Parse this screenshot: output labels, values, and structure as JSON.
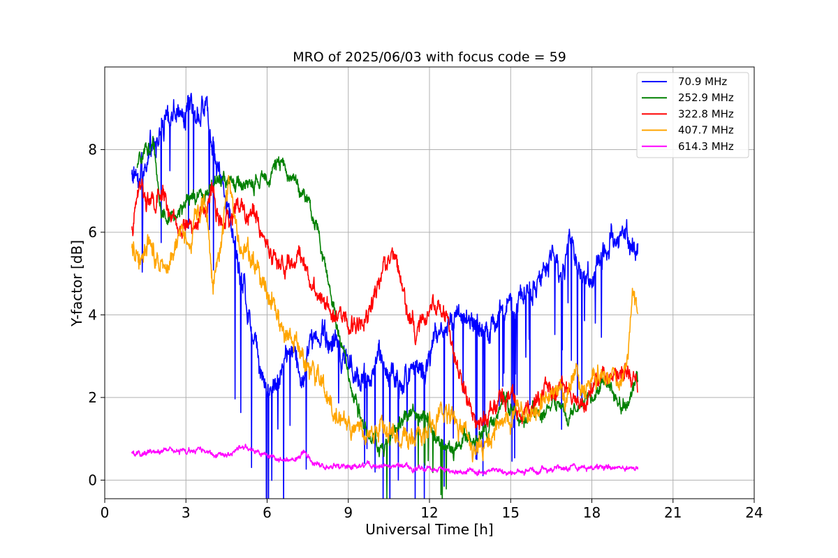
{
  "chart_data": {
    "type": "line",
    "title": "MRO of 2025/06/03 with focus code = 59",
    "xlabel": "Universal Time [h]",
    "ylabel": "Y-factor [dB]",
    "xlim": [
      0,
      24
    ],
    "ylim": [
      -0.45,
      10.0
    ],
    "x_ticks": [
      0,
      3,
      6,
      9,
      12,
      15,
      18,
      21,
      24
    ],
    "y_ticks": [
      0,
      2,
      4,
      6,
      8
    ],
    "grid": true,
    "legend_position": "top-right",
    "series": [
      {
        "name": " 70.9 MHz",
        "color": "#0000ff",
        "noise": 0.35,
        "points": [
          [
            1.0,
            7.4
          ],
          [
            1.3,
            7.6
          ],
          [
            1.6,
            7.8
          ],
          [
            1.9,
            8.2
          ],
          [
            2.2,
            8.6
          ],
          [
            2.5,
            9.0
          ],
          [
            2.8,
            9.0
          ],
          [
            3.1,
            8.9
          ],
          [
            3.4,
            9.0
          ],
          [
            3.7,
            9.1
          ],
          [
            4.0,
            8.0
          ],
          [
            4.3,
            7.1
          ],
          [
            4.6,
            6.6
          ],
          [
            4.9,
            5.5
          ],
          [
            5.2,
            4.3
          ],
          [
            5.5,
            3.6
          ],
          [
            5.8,
            2.7
          ],
          [
            6.1,
            2.2
          ],
          [
            6.4,
            2.4
          ],
          [
            6.7,
            3.1
          ],
          [
            7.0,
            3.0
          ],
          [
            7.3,
            2.6
          ],
          [
            7.6,
            3.4
          ],
          [
            7.9,
            3.6
          ],
          [
            8.2,
            3.3
          ],
          [
            8.5,
            3.2
          ],
          [
            8.8,
            2.9
          ],
          [
            9.1,
            2.7
          ],
          [
            9.4,
            2.5
          ],
          [
            9.7,
            2.6
          ],
          [
            10.0,
            2.8
          ],
          [
            10.3,
            2.7
          ],
          [
            10.6,
            2.6
          ],
          [
            10.9,
            2.4
          ],
          [
            11.2,
            2.6
          ],
          [
            11.5,
            2.8
          ],
          [
            11.8,
            2.6
          ],
          [
            12.1,
            3.1
          ],
          [
            12.4,
            3.5
          ],
          [
            12.7,
            3.9
          ],
          [
            13.0,
            4.2
          ],
          [
            13.3,
            4.1
          ],
          [
            13.6,
            3.8
          ],
          [
            13.9,
            3.5
          ],
          [
            14.2,
            3.6
          ],
          [
            14.5,
            3.9
          ],
          [
            14.8,
            4.0
          ],
          [
            15.1,
            4.0
          ],
          [
            15.4,
            4.4
          ],
          [
            15.7,
            4.7
          ],
          [
            16.0,
            5.0
          ],
          [
            16.3,
            5.0
          ],
          [
            16.6,
            5.3
          ],
          [
            16.9,
            5.0
          ],
          [
            17.2,
            5.6
          ],
          [
            17.5,
            5.2
          ],
          [
            17.8,
            5.0
          ],
          [
            18.1,
            4.9
          ],
          [
            18.4,
            5.5
          ],
          [
            18.7,
            5.7
          ],
          [
            19.0,
            5.7
          ],
          [
            19.3,
            5.8
          ],
          [
            19.7,
            5.4
          ]
        ]
      },
      {
        "name": "252.9 MHz",
        "color": "#008000",
        "noise": 0.2,
        "points": [
          [
            1.2,
            7.5
          ],
          [
            1.5,
            8.0
          ],
          [
            1.8,
            8.1
          ],
          [
            2.1,
            6.5
          ],
          [
            2.4,
            6.3
          ],
          [
            2.7,
            6.5
          ],
          [
            3.0,
            6.6
          ],
          [
            3.3,
            6.8
          ],
          [
            3.6,
            6.9
          ],
          [
            3.9,
            7.1
          ],
          [
            4.2,
            7.2
          ],
          [
            4.5,
            7.3
          ],
          [
            4.8,
            7.1
          ],
          [
            5.1,
            7.2
          ],
          [
            5.4,
            7.1
          ],
          [
            5.7,
            7.2
          ],
          [
            6.0,
            7.4
          ],
          [
            6.3,
            7.7
          ],
          [
            6.6,
            7.5
          ],
          [
            6.9,
            7.4
          ],
          [
            7.2,
            7.1
          ],
          [
            7.5,
            6.7
          ],
          [
            7.8,
            6.1
          ],
          [
            8.1,
            5.4
          ],
          [
            8.4,
            4.4
          ],
          [
            8.7,
            3.4
          ],
          [
            9.0,
            2.6
          ],
          [
            9.3,
            1.9
          ],
          [
            9.6,
            1.4
          ],
          [
            9.9,
            1.0
          ],
          [
            10.2,
            0.7
          ],
          [
            10.5,
            1.0
          ],
          [
            10.8,
            1.4
          ],
          [
            11.1,
            1.5
          ],
          [
            11.4,
            1.6
          ],
          [
            11.7,
            1.6
          ],
          [
            12.0,
            1.4
          ],
          [
            12.3,
            1.0
          ],
          [
            12.6,
            0.8
          ],
          [
            12.9,
            0.7
          ],
          [
            13.2,
            1.1
          ],
          [
            13.5,
            1.0
          ],
          [
            13.8,
            1.0
          ],
          [
            14.1,
            1.2
          ],
          [
            14.4,
            1.5
          ],
          [
            14.7,
            1.9
          ],
          [
            15.0,
            1.7
          ],
          [
            15.3,
            1.5
          ],
          [
            15.6,
            1.4
          ],
          [
            15.9,
            1.6
          ],
          [
            16.2,
            1.6
          ],
          [
            16.5,
            1.8
          ],
          [
            16.8,
            1.9
          ],
          [
            17.1,
            1.6
          ],
          [
            17.4,
            1.7
          ],
          [
            17.7,
            1.8
          ],
          [
            18.0,
            2.0
          ],
          [
            18.3,
            2.2
          ],
          [
            18.6,
            2.3
          ],
          [
            18.9,
            2.0
          ],
          [
            19.2,
            1.8
          ],
          [
            19.5,
            2.1
          ],
          [
            19.7,
            2.3
          ]
        ]
      },
      {
        "name": "322.8 MHz",
        "color": "#ff0000",
        "noise": 0.25,
        "points": [
          [
            1.0,
            6.0
          ],
          [
            1.3,
            7.2
          ],
          [
            1.6,
            6.8
          ],
          [
            1.9,
            6.6
          ],
          [
            2.2,
            7.0
          ],
          [
            2.5,
            6.2
          ],
          [
            2.8,
            5.9
          ],
          [
            3.1,
            6.3
          ],
          [
            3.4,
            6.2
          ],
          [
            3.7,
            6.5
          ],
          [
            4.0,
            6.9
          ],
          [
            4.3,
            6.1
          ],
          [
            4.6,
            6.2
          ],
          [
            4.9,
            6.7
          ],
          [
            5.2,
            6.4
          ],
          [
            5.5,
            6.5
          ],
          [
            5.8,
            6.1
          ],
          [
            6.1,
            5.5
          ],
          [
            6.4,
            5.3
          ],
          [
            6.7,
            5.1
          ],
          [
            7.0,
            5.3
          ],
          [
            7.3,
            5.5
          ],
          [
            7.6,
            4.8
          ],
          [
            7.9,
            4.6
          ],
          [
            8.2,
            4.4
          ],
          [
            8.5,
            4.1
          ],
          [
            8.8,
            3.9
          ],
          [
            9.1,
            3.7
          ],
          [
            9.4,
            3.7
          ],
          [
            9.7,
            4.1
          ],
          [
            10.0,
            4.6
          ],
          [
            10.3,
            5.2
          ],
          [
            10.6,
            5.5
          ],
          [
            10.9,
            5.1
          ],
          [
            11.2,
            4.2
          ],
          [
            11.5,
            3.5
          ],
          [
            11.8,
            3.9
          ],
          [
            12.1,
            4.2
          ],
          [
            12.4,
            4.2
          ],
          [
            12.7,
            3.9
          ],
          [
            13.0,
            2.8
          ],
          [
            13.3,
            2.1
          ],
          [
            13.6,
            1.6
          ],
          [
            13.9,
            1.3
          ],
          [
            14.2,
            1.5
          ],
          [
            14.5,
            1.9
          ],
          [
            14.8,
            2.1
          ],
          [
            15.1,
            2.0
          ],
          [
            15.4,
            1.8
          ],
          [
            15.7,
            1.7
          ],
          [
            16.0,
            2.0
          ],
          [
            16.3,
            2.3
          ],
          [
            16.6,
            2.2
          ],
          [
            16.9,
            2.2
          ],
          [
            17.2,
            2.0
          ],
          [
            17.5,
            1.9
          ],
          [
            17.8,
            2.1
          ],
          [
            18.1,
            2.2
          ],
          [
            18.4,
            2.5
          ],
          [
            18.7,
            2.5
          ],
          [
            19.0,
            2.6
          ],
          [
            19.3,
            2.7
          ],
          [
            19.7,
            2.2
          ]
        ]
      },
      {
        "name": "407.7 MHz",
        "color": "#ffa500",
        "noise": 0.28,
        "points": [
          [
            1.0,
            5.6
          ],
          [
            1.3,
            5.5
          ],
          [
            1.6,
            5.8
          ],
          [
            1.9,
            5.5
          ],
          [
            2.2,
            5.3
          ],
          [
            2.5,
            5.6
          ],
          [
            2.8,
            5.9
          ],
          [
            3.1,
            5.7
          ],
          [
            3.4,
            6.5
          ],
          [
            3.7,
            6.8
          ],
          [
            4.0,
            4.8
          ],
          [
            4.3,
            5.8
          ],
          [
            4.6,
            7.4
          ],
          [
            4.9,
            5.8
          ],
          [
            5.2,
            5.6
          ],
          [
            5.5,
            5.4
          ],
          [
            5.8,
            5.0
          ],
          [
            6.1,
            4.5
          ],
          [
            6.4,
            4.0
          ],
          [
            6.7,
            3.5
          ],
          [
            7.0,
            3.2
          ],
          [
            7.3,
            3.0
          ],
          [
            7.6,
            2.7
          ],
          [
            7.9,
            2.4
          ],
          [
            8.2,
            2.0
          ],
          [
            8.5,
            1.6
          ],
          [
            8.8,
            1.5
          ],
          [
            9.1,
            1.3
          ],
          [
            9.4,
            1.2
          ],
          [
            9.7,
            1.0
          ],
          [
            10.0,
            1.2
          ],
          [
            10.3,
            1.4
          ],
          [
            10.6,
            1.1
          ],
          [
            10.9,
            1.0
          ],
          [
            11.2,
            1.1
          ],
          [
            11.5,
            1.0
          ],
          [
            11.8,
            0.9
          ],
          [
            12.1,
            1.4
          ],
          [
            12.4,
            1.7
          ],
          [
            12.7,
            1.6
          ],
          [
            13.0,
            1.3
          ],
          [
            13.3,
            1.0
          ],
          [
            13.6,
            0.7
          ],
          [
            13.9,
            0.7
          ],
          [
            14.2,
            0.9
          ],
          [
            14.5,
            1.1
          ],
          [
            14.8,
            1.3
          ],
          [
            15.1,
            1.5
          ],
          [
            15.4,
            1.6
          ],
          [
            15.7,
            1.5
          ],
          [
            16.0,
            1.7
          ],
          [
            16.3,
            1.9
          ],
          [
            16.6,
            1.8
          ],
          [
            16.9,
            2.0
          ],
          [
            17.2,
            2.2
          ],
          [
            17.5,
            2.4
          ],
          [
            17.8,
            2.3
          ],
          [
            18.1,
            2.5
          ],
          [
            18.4,
            2.8
          ],
          [
            18.7,
            2.6
          ],
          [
            19.0,
            2.4
          ],
          [
            19.3,
            3.0
          ],
          [
            19.5,
            4.4
          ],
          [
            19.7,
            3.9
          ]
        ]
      },
      {
        "name": "614.3 MHz",
        "color": "#ff00ff",
        "noise": 0.07,
        "points": [
          [
            1.0,
            0.62
          ],
          [
            1.5,
            0.63
          ],
          [
            2.0,
            0.72
          ],
          [
            2.5,
            0.7
          ],
          [
            3.0,
            0.69
          ],
          [
            3.5,
            0.71
          ],
          [
            4.0,
            0.66
          ],
          [
            4.5,
            0.64
          ],
          [
            5.0,
            0.74
          ],
          [
            5.3,
            0.78
          ],
          [
            5.6,
            0.65
          ],
          [
            6.0,
            0.55
          ],
          [
            6.5,
            0.48
          ],
          [
            7.0,
            0.47
          ],
          [
            7.4,
            0.72
          ],
          [
            7.7,
            0.42
          ],
          [
            8.0,
            0.36
          ],
          [
            8.5,
            0.3
          ],
          [
            9.0,
            0.33
          ],
          [
            9.5,
            0.33
          ],
          [
            10.0,
            0.35
          ],
          [
            10.5,
            0.34
          ],
          [
            11.0,
            0.3
          ],
          [
            11.5,
            0.27
          ],
          [
            12.0,
            0.27
          ],
          [
            12.5,
            0.22
          ],
          [
            13.0,
            0.18
          ],
          [
            13.5,
            0.18
          ],
          [
            14.0,
            0.21
          ],
          [
            14.5,
            0.2
          ],
          [
            15.0,
            0.2
          ],
          [
            15.5,
            0.24
          ],
          [
            16.0,
            0.26
          ],
          [
            16.5,
            0.28
          ],
          [
            17.0,
            0.31
          ],
          [
            17.5,
            0.32
          ],
          [
            18.0,
            0.29
          ],
          [
            18.5,
            0.3
          ],
          [
            19.0,
            0.3
          ],
          [
            19.5,
            0.3
          ],
          [
            19.7,
            0.28
          ]
        ]
      }
    ]
  }
}
